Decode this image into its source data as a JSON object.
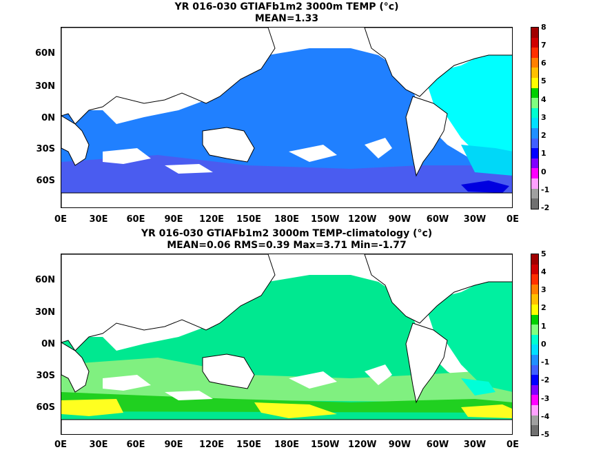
{
  "panels": [
    {
      "title_line1": "YR 016-030 GTIAFb1m2 3000m TEMP (°c)",
      "title_line2": "MEAN=1.33",
      "colorbar_ticks": [
        "8",
        "7",
        "6",
        "5",
        "4",
        "3",
        "2",
        "1",
        "0",
        "-1",
        "-2"
      ],
      "colorbar_colors": [
        "#a00000",
        "#d00000",
        "#ff3000",
        "#ff8000",
        "#ffc000",
        "#ffff00",
        "#00d000",
        "#80ff80",
        "#00ffd0",
        "#00e0ff",
        "#2090ff",
        "#4060ff",
        "#0000ff",
        "#8000ff",
        "#ff00ff",
        "#ffa0ff",
        "#a0a0a0",
        "#707070"
      ]
    },
    {
      "title_line1": "YR 016-030 GTIAFb1m2 3000m TEMP-climatology (°c)",
      "title_line2": "MEAN=0.06   RMS=0.39   Max=3.71   Min=-1.77",
      "colorbar_ticks": [
        "5",
        "4",
        "3",
        "2",
        "1",
        "0",
        "-1",
        "-2",
        "-3",
        "-4",
        "-5"
      ],
      "colorbar_colors": [
        "#a00000",
        "#d00000",
        "#ff3000",
        "#ff8000",
        "#ffc000",
        "#ffff00",
        "#00d000",
        "#80ff80",
        "#00ffd0",
        "#00e0ff",
        "#2090ff",
        "#4060ff",
        "#0000ff",
        "#8000ff",
        "#ff00ff",
        "#ffa0ff",
        "#a0a0a0",
        "#707070"
      ]
    }
  ],
  "lat_labels": [
    "60N",
    "30N",
    "0N",
    "30S",
    "60S"
  ],
  "lon_labels": [
    "0E",
    "30E",
    "60E",
    "90E",
    "120E",
    "150E",
    "180E",
    "150W",
    "120W",
    "90W",
    "60W",
    "30W",
    "0E"
  ],
  "colors": {
    "top_pacific": "#2080ff",
    "top_southern": "#4a5cf0",
    "top_atlantic": "#00ffff",
    "top_deep_blue": "#0000e0",
    "bottom_main": "#00e890",
    "bottom_light": "#80f080",
    "bottom_yellow": "#ffff20",
    "bottom_green": "#20d020",
    "bottom_cyan": "#00ffd8",
    "land": "#ffffff"
  }
}
